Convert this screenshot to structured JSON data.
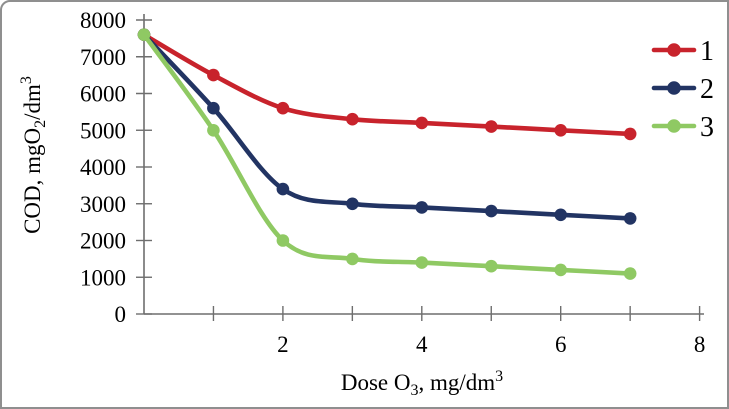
{
  "frame": {
    "background_color": "#ffffff",
    "border_color": "#8f8f8f"
  },
  "chart_data": {
    "type": "line",
    "smoothed": true,
    "marker": "circle",
    "grid": false,
    "x": [
      0,
      1,
      2,
      3,
      4,
      5,
      6,
      7
    ],
    "series": [
      {
        "name": "1",
        "color": "#c8232c",
        "values": [
          7600,
          6500,
          5600,
          5300,
          5200,
          5100,
          5000,
          4900
        ]
      },
      {
        "name": "2",
        "color": "#223463",
        "values": [
          7600,
          5600,
          3400,
          3000,
          2900,
          2800,
          2700,
          2600
        ]
      },
      {
        "name": "3",
        "color": "#8fc963",
        "values": [
          7600,
          5000,
          2000,
          1500,
          1400,
          1300,
          1200,
          1100
        ]
      }
    ],
    "title": "",
    "xlabel": "Dose O3, mg/dm3",
    "ylabel": "COD, mgO2/dm3",
    "xlabel_parts": [
      {
        "t": "Dose O"
      },
      {
        "t": "3",
        "sub": true
      },
      {
        "t": ", mg/dm"
      },
      {
        "t": "3",
        "sup": true
      }
    ],
    "ylabel_parts": [
      {
        "t": "COD, mgO"
      },
      {
        "t": "2",
        "sub": true
      },
      {
        "t": "/dm"
      },
      {
        "t": "3",
        "sup": true
      }
    ],
    "xlim": [
      0,
      8
    ],
    "ylim": [
      0,
      8000
    ],
    "x_tick_step": 1,
    "x_labeled_ticks": [
      2,
      4,
      6,
      8
    ],
    "y_tick_step": 1000,
    "y_tick_labels": [
      "0",
      "1000",
      "2000",
      "3000",
      "4000",
      "5000",
      "6000",
      "7000",
      "8000"
    ],
    "legend": {
      "position": "top-right",
      "entries": [
        "1",
        "2",
        "3"
      ]
    },
    "axis_color": "#6e6e6e",
    "text_color": "#000000"
  }
}
